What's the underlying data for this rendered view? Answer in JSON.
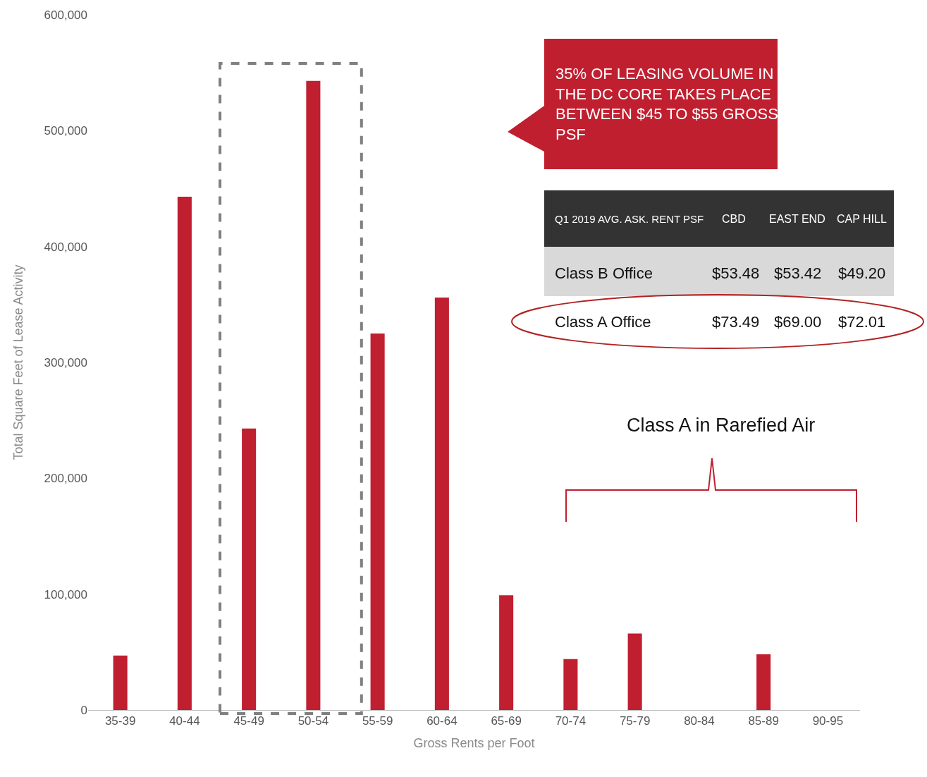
{
  "chart_data": {
    "type": "bar",
    "xlabel": "Gross Rents per Foot",
    "ylabel": "Total Square Feet of Lease Activity",
    "categories": [
      "35-39",
      "40-44",
      "45-49",
      "50-54",
      "55-59",
      "60-64",
      "65-69",
      "70-74",
      "75-79",
      "80-84",
      "85-89",
      "90-95"
    ],
    "values": [
      47000,
      443000,
      243000,
      543000,
      325000,
      356000,
      99000,
      44000,
      66000,
      0,
      48000,
      0
    ],
    "color": "#c01f2f",
    "ylim": [
      0,
      600000
    ],
    "yticks": [
      {
        "value": 0,
        "label": "0"
      },
      {
        "value": 100000,
        "label": "100,000"
      },
      {
        "value": 200000,
        "label": "200,000"
      },
      {
        "value": 300000,
        "label": "300,000"
      },
      {
        "value": 400000,
        "label": "400,000"
      },
      {
        "value": 500000,
        "label": "500,000"
      },
      {
        "value": 600000,
        "label": "600,000"
      }
    ],
    "annotations": [
      "35% OF LEASING VOLUME IN THE DC CORE TAKES PLACE BETWEEN $45 TO $55 GROSS PSF",
      "Q1 2019 AVG. ASK. RENT PSF",
      "CBD",
      "EAST END",
      "CAP HILL",
      "Class B Office",
      "$53.48",
      "$53.42",
      "$49.20",
      "Class A Office",
      "$73.49",
      "$69.00",
      "$72.01",
      "Class A in Rarefied Air"
    ]
  }
}
